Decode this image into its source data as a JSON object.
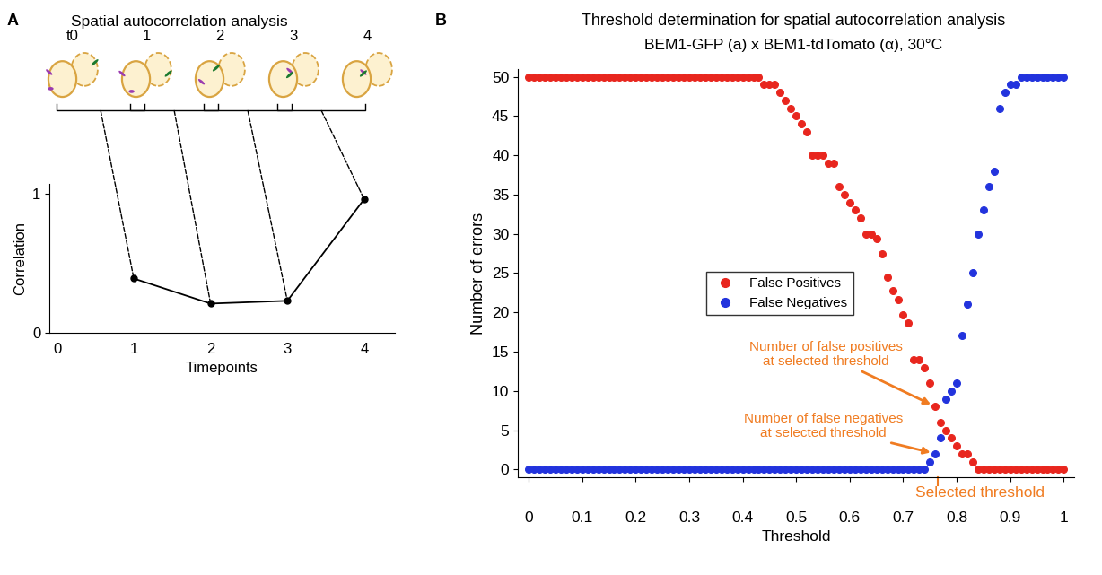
{
  "chart_data": [
    {
      "type": "line",
      "panel": "A",
      "title": "Spatial autocorrelation analysis",
      "annotations": [
        "t0",
        "1",
        "2",
        "3",
        "4"
      ],
      "x_label": "Timepoints",
      "y_label": "Correlation",
      "x": [
        1,
        2,
        3,
        4
      ],
      "values": [
        0.39,
        0.21,
        0.23,
        0.96
      ],
      "color": "#000000",
      "marker": "o",
      "line_style": "solid",
      "xlim": [
        -0.1,
        4.4
      ],
      "ylim": [
        0,
        1.07
      ],
      "xticks": [
        0,
        1,
        2,
        3,
        4
      ],
      "yticks": [
        0,
        1
      ]
    },
    {
      "type": "scatter",
      "panel": "B",
      "title": "Threshold determination for spatial autocorrelation analysis",
      "subtitle": "BEM1-GFP (a) x BEM1-tdTomato (α), 30°C",
      "x_label": "Threshold",
      "y_label": "Number of errors",
      "x": [
        0,
        0.01,
        0.02,
        0.03,
        0.04,
        0.05,
        0.06,
        0.07,
        0.08,
        0.09,
        0.1,
        0.11,
        0.12,
        0.13,
        0.14,
        0.15,
        0.16,
        0.17,
        0.18,
        0.19,
        0.2,
        0.21,
        0.22,
        0.23,
        0.24,
        0.25,
        0.26,
        0.27,
        0.28,
        0.29,
        0.3,
        0.31,
        0.32,
        0.33,
        0.34,
        0.35,
        0.36,
        0.37,
        0.38,
        0.39,
        0.4,
        0.41,
        0.42,
        0.43,
        0.44,
        0.45,
        0.46,
        0.47,
        0.48,
        0.49,
        0.5,
        0.51,
        0.52,
        0.53,
        0.54,
        0.55,
        0.56,
        0.57,
        0.58,
        0.59,
        0.6,
        0.61,
        0.62,
        0.63,
        0.64,
        0.65,
        0.66,
        0.67,
        0.68,
        0.69,
        0.7,
        0.71,
        0.72,
        0.73,
        0.74,
        0.75,
        0.76,
        0.77,
        0.78,
        0.79,
        0.8,
        0.81,
        0.82,
        0.83,
        0.84,
        0.85,
        0.86,
        0.87,
        0.88,
        0.89,
        0.9,
        0.91,
        0.92,
        0.93,
        0.94,
        0.95,
        0.96,
        0.97,
        0.98,
        0.99,
        1
      ],
      "series": [
        {
          "name": "False Positives",
          "color": "#e8261e",
          "marker": "o",
          "values": [
            50,
            50,
            50,
            50,
            50,
            50,
            50,
            50,
            50,
            50,
            50,
            50,
            50,
            50,
            50,
            50,
            50,
            50,
            50,
            50,
            50,
            50,
            50,
            50,
            50,
            50,
            50,
            50,
            50,
            50,
            50,
            50,
            50,
            50,
            50,
            50,
            50,
            50,
            50,
            50,
            50,
            50,
            50,
            50,
            49,
            49,
            49,
            48,
            47,
            46,
            45,
            44,
            43,
            40,
            40,
            40,
            39,
            39,
            36,
            35,
            34,
            33,
            32,
            30,
            30,
            29.4,
            27.4,
            24.5,
            22.8,
            21.6,
            19.7,
            18.7,
            14,
            14,
            13,
            11,
            8,
            6,
            5,
            4,
            3,
            2,
            2,
            1,
            0,
            0,
            0,
            0,
            0,
            0,
            0,
            0,
            0,
            0,
            0,
            0,
            0,
            0,
            0,
            0,
            0
          ]
        },
        {
          "name": "False Negatives",
          "color": "#2233dd",
          "marker": "o",
          "values": [
            0,
            0,
            0,
            0,
            0,
            0,
            0,
            0,
            0,
            0,
            0,
            0,
            0,
            0,
            0,
            0,
            0,
            0,
            0,
            0,
            0,
            0,
            0,
            0,
            0,
            0,
            0,
            0,
            0,
            0,
            0,
            0,
            0,
            0,
            0,
            0,
            0,
            0,
            0,
            0,
            0,
            0,
            0,
            0,
            0,
            0,
            0,
            0,
            0,
            0,
            0,
            0,
            0,
            0,
            0,
            0,
            0,
            0,
            0,
            0,
            0,
            0,
            0,
            0,
            0,
            0,
            0,
            0,
            0,
            0,
            0,
            0,
            0,
            0,
            0,
            1,
            2,
            4,
            9,
            10,
            11,
            17,
            21,
            25,
            30,
            33,
            36,
            38,
            46,
            48,
            49,
            49,
            50,
            50,
            50,
            50,
            50,
            50,
            50,
            50,
            50
          ]
        }
      ],
      "xlim": [
        -0.02,
        1.02
      ],
      "ylim": [
        -1,
        51
      ],
      "xticks": [
        0,
        0.1,
        0.2,
        0.3,
        0.4,
        0.5,
        0.6,
        0.7,
        0.8,
        0.9,
        1
      ],
      "yticks": [
        0,
        5,
        10,
        15,
        20,
        25,
        30,
        35,
        40,
        45,
        50
      ],
      "legend": "center",
      "selected_threshold": 0.764,
      "annotations": {
        "false_positives": "Number of false positives\nat selected threshold",
        "false_negatives": "Number of false negatives\nat selected threshold",
        "selected_threshold": "Selected threshold"
      }
    }
  ]
}
